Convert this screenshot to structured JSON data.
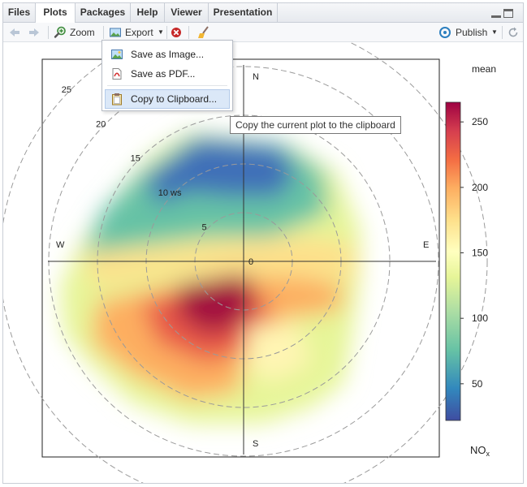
{
  "tabs": [
    {
      "label": "Files",
      "active": false
    },
    {
      "label": "Plots",
      "active": true
    },
    {
      "label": "Packages",
      "active": false
    },
    {
      "label": "Help",
      "active": false
    },
    {
      "label": "Viewer",
      "active": false
    },
    {
      "label": "Presentation",
      "active": false
    }
  ],
  "toolbar": {
    "zoom_label": "Zoom",
    "export_label": "Export",
    "publish_label": "Publish"
  },
  "export_menu": {
    "items": [
      {
        "label": "Save as Image...",
        "icon": "image-icon",
        "highlighted": false
      },
      {
        "label": "Save as PDF...",
        "icon": "pdf-icon",
        "highlighted": false
      },
      {
        "label": "Copy to Clipboard...",
        "icon": "clipboard-icon",
        "highlighted": true
      }
    ]
  },
  "tooltip": "Copy the current plot to the clipboard",
  "chart_data": {
    "type": "heatmap",
    "subtype": "polar",
    "compass": {
      "north": "N",
      "east": "E",
      "south": "S",
      "west": "W"
    },
    "radial_ticks": [
      "0",
      "5",
      "10 ws",
      "15",
      "20",
      "25"
    ],
    "colorbar": {
      "title": "mean",
      "label": "NO",
      "label_sub": "x",
      "ticks": [
        50,
        100,
        150,
        200,
        250
      ],
      "range": [
        22,
        265
      ],
      "colors": [
        "#3288bd",
        "#66c2a5",
        "#abdda4",
        "#e6f598",
        "#ffffbf",
        "#fee08b",
        "#fdae61",
        "#f46d43",
        "#d53e4f",
        "#9e0142"
      ]
    }
  },
  "colors": {
    "accent": "#2c7fbf",
    "tab_bar": "#e6e9ee",
    "menu_highlight": "#dbe8f8"
  }
}
